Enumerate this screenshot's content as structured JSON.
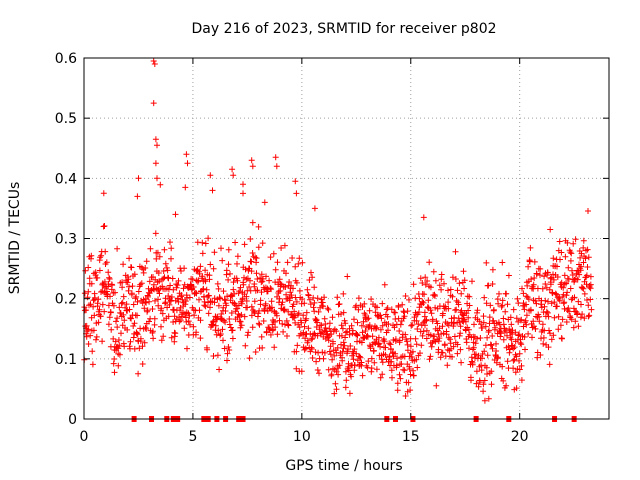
{
  "chart_data": {
    "type": "scatter",
    "title": "Day 216 of 2023, SRMTID for receiver p802",
    "xlabel": "GPS time / hours",
    "ylabel": "SRMTID / TECUs",
    "xlim": [
      0,
      24.1
    ],
    "ylim": [
      0,
      0.6
    ],
    "xticks": [
      0,
      5,
      10,
      15,
      20
    ],
    "yticks": [
      0,
      0.1,
      0.2,
      0.3,
      0.4,
      0.5,
      0.6
    ],
    "xtick_labels": [
      "0",
      "5",
      "10",
      "15",
      "20"
    ],
    "ytick_labels": [
      "0",
      "0.1",
      "0.2",
      "0.3",
      "0.4",
      "0.5",
      "0.6"
    ],
    "grid": true,
    "marker": "+",
    "series_color": "#ff0000",
    "x_range": [
      0,
      23.3
    ],
    "profile": [
      {
        "x": 0.0,
        "y": 0.17
      },
      {
        "x": 0.5,
        "y": 0.19
      },
      {
        "x": 1.0,
        "y": 0.24
      },
      {
        "x": 1.5,
        "y": 0.14
      },
      {
        "x": 2.0,
        "y": 0.21
      },
      {
        "x": 2.5,
        "y": 0.17
      },
      {
        "x": 3.0,
        "y": 0.2
      },
      {
        "x": 3.5,
        "y": 0.22
      },
      {
        "x": 4.0,
        "y": 0.21
      },
      {
        "x": 4.5,
        "y": 0.19
      },
      {
        "x": 5.0,
        "y": 0.18
      },
      {
        "x": 5.5,
        "y": 0.22
      },
      {
        "x": 6.0,
        "y": 0.18
      },
      {
        "x": 6.5,
        "y": 0.17
      },
      {
        "x": 7.0,
        "y": 0.21
      },
      {
        "x": 7.5,
        "y": 0.2
      },
      {
        "x": 8.0,
        "y": 0.21
      },
      {
        "x": 8.5,
        "y": 0.19
      },
      {
        "x": 9.0,
        "y": 0.2
      },
      {
        "x": 9.5,
        "y": 0.18
      },
      {
        "x": 10.0,
        "y": 0.17
      },
      {
        "x": 10.5,
        "y": 0.16
      },
      {
        "x": 11.0,
        "y": 0.14
      },
      {
        "x": 11.5,
        "y": 0.13
      },
      {
        "x": 12.0,
        "y": 0.12
      },
      {
        "x": 12.5,
        "y": 0.13
      },
      {
        "x": 13.0,
        "y": 0.14
      },
      {
        "x": 13.5,
        "y": 0.13
      },
      {
        "x": 14.0,
        "y": 0.13
      },
      {
        "x": 14.5,
        "y": 0.12
      },
      {
        "x": 15.0,
        "y": 0.11
      },
      {
        "x": 15.5,
        "y": 0.17
      },
      {
        "x": 16.0,
        "y": 0.16
      },
      {
        "x": 16.5,
        "y": 0.17
      },
      {
        "x": 17.0,
        "y": 0.18
      },
      {
        "x": 17.5,
        "y": 0.17
      },
      {
        "x": 18.0,
        "y": 0.11
      },
      {
        "x": 18.5,
        "y": 0.13
      },
      {
        "x": 19.0,
        "y": 0.14
      },
      {
        "x": 19.5,
        "y": 0.14
      },
      {
        "x": 20.0,
        "y": 0.12
      },
      {
        "x": 20.5,
        "y": 0.21
      },
      {
        "x": 21.0,
        "y": 0.18
      },
      {
        "x": 21.5,
        "y": 0.21
      },
      {
        "x": 22.0,
        "y": 0.2
      },
      {
        "x": 22.5,
        "y": 0.22
      },
      {
        "x": 23.0,
        "y": 0.24
      },
      {
        "x": 23.3,
        "y": 0.23
      }
    ],
    "spread": 0.05,
    "outliers": [
      {
        "x": 3.2,
        "y": 0.595
      },
      {
        "x": 3.25,
        "y": 0.59
      },
      {
        "x": 3.2,
        "y": 0.525
      },
      {
        "x": 3.3,
        "y": 0.465
      },
      {
        "x": 3.35,
        "y": 0.455
      },
      {
        "x": 3.3,
        "y": 0.425
      },
      {
        "x": 3.35,
        "y": 0.4
      },
      {
        "x": 2.5,
        "y": 0.4
      },
      {
        "x": 2.45,
        "y": 0.37
      },
      {
        "x": 4.7,
        "y": 0.44
      },
      {
        "x": 4.75,
        "y": 0.425
      },
      {
        "x": 4.65,
        "y": 0.385
      },
      {
        "x": 6.8,
        "y": 0.415
      },
      {
        "x": 6.85,
        "y": 0.405
      },
      {
        "x": 7.3,
        "y": 0.39
      },
      {
        "x": 7.3,
        "y": 0.375
      },
      {
        "x": 7.7,
        "y": 0.43
      },
      {
        "x": 7.75,
        "y": 0.42
      },
      {
        "x": 8.8,
        "y": 0.435
      },
      {
        "x": 8.85,
        "y": 0.42
      },
      {
        "x": 9.7,
        "y": 0.395
      },
      {
        "x": 9.75,
        "y": 0.375
      },
      {
        "x": 5.8,
        "y": 0.405
      },
      {
        "x": 5.9,
        "y": 0.38
      },
      {
        "x": 10.6,
        "y": 0.35
      },
      {
        "x": 15.6,
        "y": 0.335
      },
      {
        "x": 21.4,
        "y": 0.315
      },
      {
        "x": 4.2,
        "y": 0.34
      },
      {
        "x": 0.9,
        "y": 0.32
      },
      {
        "x": 8.3,
        "y": 0.36
      }
    ],
    "zero_marks": [
      2.3,
      3.1,
      3.8,
      4.1,
      4.3,
      5.5,
      5.7,
      6.1,
      6.5,
      7.1,
      7.3,
      13.9,
      14.3,
      15.1,
      18.0,
      19.5,
      21.6,
      22.5
    ]
  }
}
